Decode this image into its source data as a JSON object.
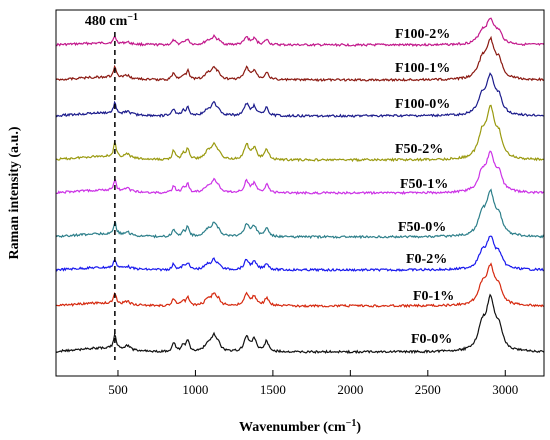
{
  "chart_data": {
    "type": "line",
    "title": "",
    "xlabel": "Wavenumber (cm",
    "xlabel_sup": "−1",
    "xlabel_tail": ")",
    "ylabel": "Raman intensity (a.u.)",
    "xlim": [
      100,
      3250
    ],
    "xticks": [
      500,
      1000,
      1500,
      2000,
      2500,
      3000
    ],
    "yticks_shown": false,
    "grid": false,
    "annotation": {
      "text": "480 cm",
      "sup": "−1",
      "x": 480,
      "style": "dashed vertical line"
    },
    "peaks": [
      {
        "x": 480,
        "h": 0.3,
        "w": 10
      },
      {
        "x": 560,
        "h": 0.08,
        "w": 20
      },
      {
        "x": 860,
        "h": 0.2,
        "w": 12
      },
      {
        "x": 920,
        "h": 0.12,
        "w": 12
      },
      {
        "x": 950,
        "h": 0.24,
        "w": 12
      },
      {
        "x": 1080,
        "h": 0.16,
        "w": 25
      },
      {
        "x": 1120,
        "h": 0.3,
        "w": 20
      },
      {
        "x": 1150,
        "h": 0.12,
        "w": 15
      },
      {
        "x": 1330,
        "h": 0.32,
        "w": 18
      },
      {
        "x": 1380,
        "h": 0.25,
        "w": 18
      },
      {
        "x": 1460,
        "h": 0.22,
        "w": 15
      },
      {
        "x": 2850,
        "h": 0.45,
        "w": 30
      },
      {
        "x": 2905,
        "h": 1.0,
        "w": 32
      },
      {
        "x": 2960,
        "h": 0.4,
        "w": 25
      }
    ],
    "series": [
      {
        "name": "F100-2%",
        "color": "#c2188b",
        "scale": 0.55
      },
      {
        "name": "F100-1%",
        "color": "#8b1a12",
        "scale": 0.85
      },
      {
        "name": "F100-0%",
        "color": "#1c1c8c",
        "scale": 0.85
      },
      {
        "name": "F50-2%",
        "color": "#9a9a10",
        "scale": 1.1
      },
      {
        "name": "F50-1%",
        "color": "#cc33e6",
        "scale": 0.85
      },
      {
        "name": "F50-0%",
        "color": "#2d7f8a",
        "scale": 0.95
      },
      {
        "name": "F0-2%",
        "color": "#1a1aee",
        "scale": 0.7
      },
      {
        "name": "F0-1%",
        "color": "#d62a10",
        "scale": 0.85
      },
      {
        "name": "F0-0%",
        "color": "#111111",
        "scale": 1.15
      }
    ]
  }
}
